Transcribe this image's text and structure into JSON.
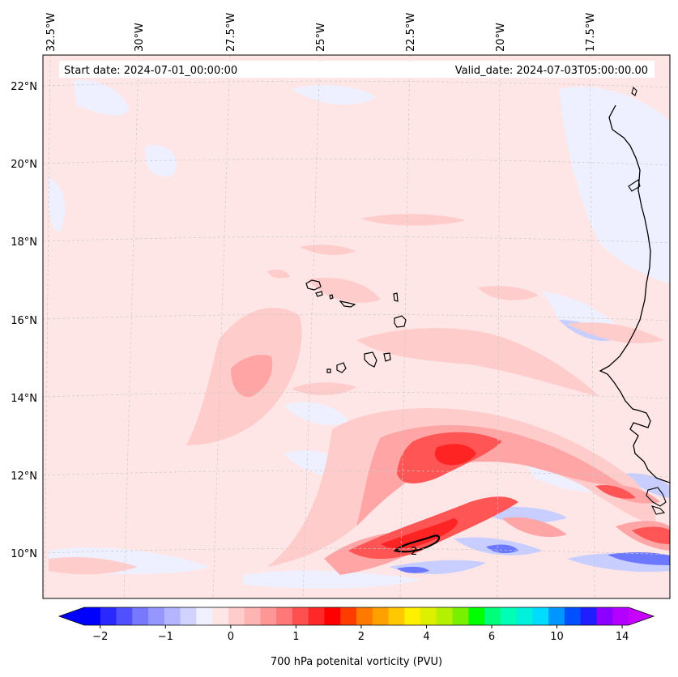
{
  "map": {
    "start_date": "Start date: 2024-07-01_00:00:00",
    "valid_date": "Valid_date: 2024-07-03T05:00:00.00",
    "lon_labels": [
      "32.5°W",
      "30°W",
      "27.5°W",
      "25°W",
      "22.5°W",
      "20°W",
      "17.5°W"
    ],
    "lat_labels": [
      "22°N",
      "20°N",
      "18°N",
      "16°N",
      "14°N",
      "12°N",
      "10°N"
    ],
    "contour_label": "2",
    "colors": {
      "land_outline": "#000000",
      "background_field": "#ffe6e6",
      "weak_negative": "#eef0ff",
      "moderate_negative": "#aab4ff",
      "strong_negative": "#3c48ff",
      "weak_positive": "#ffcccc",
      "moderate_positive": "#ff8c8c",
      "strong_positive": "#ff3232",
      "peak_positive": "#e60000"
    }
  },
  "colorbar": {
    "ticks": [
      "−2",
      "−1",
      "0",
      "1",
      "2",
      "4",
      "6",
      "10",
      "14"
    ],
    "label": "700 hPa potenital vorticity (PVU)",
    "colors": [
      "#0000ff",
      "#2828ff",
      "#5050ff",
      "#7878ff",
      "#9696ff",
      "#b4b4ff",
      "#d2d2ff",
      "#f0f0ff",
      "#ffe6e6",
      "#ffcccc",
      "#ffb4b4",
      "#ff9696",
      "#ff7878",
      "#ff5050",
      "#ff2828",
      "#ff0000",
      "#ff3c00",
      "#ff7800",
      "#ffa000",
      "#ffc800",
      "#fff000",
      "#dcf000",
      "#b4f000",
      "#78f000",
      "#00ff00",
      "#00ff78",
      "#00ffb4",
      "#00f0dc",
      "#00dcff",
      "#0096ff",
      "#0050ff",
      "#1e1eff",
      "#8c00ff",
      "#b400ff"
    ],
    "extend_low_color": "#0000ff",
    "extend_high_color": "#c800ff"
  }
}
